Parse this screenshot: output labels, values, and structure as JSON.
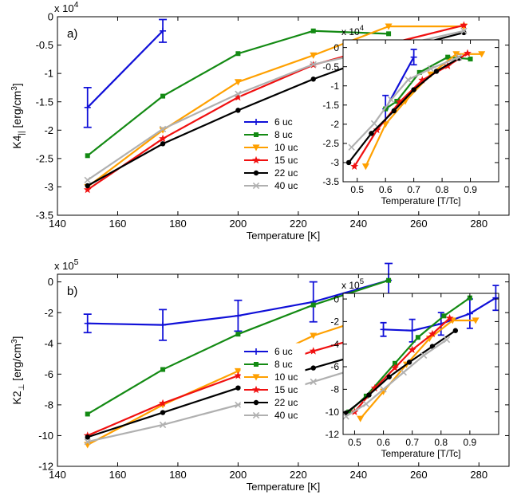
{
  "colors": {
    "6 uc": "#1010d8",
    "8 uc": "#138a13",
    "10 uc": "#ffa000",
    "15 uc": "#f01010",
    "22 uc": "#000000",
    "40 uc": "#b0b0b0"
  },
  "chart_data": [
    {
      "id": "a-main",
      "type": "line",
      "panel_label": "a)",
      "xlabel": "Temperature [K]",
      "ylabel_main": "K4",
      "ylabel_sub": "||",
      "ylabel_unit": " [erg/cm",
      "ylabel_sup": "3",
      "ylabel_end": "]",
      "exp_base": "x 10",
      "exp_power": "4",
      "xlim": [
        140,
        290
      ],
      "ylim": [
        -3.5,
        0
      ],
      "xticks": [
        140,
        160,
        180,
        200,
        220,
        240,
        260,
        280
      ],
      "yticks": [
        -3.5,
        -3,
        -2.5,
        -2,
        -1.5,
        -1,
        -0.5,
        0
      ],
      "ytick_labels": [
        "-3.5",
        "-3",
        "-2.5",
        "-2",
        "-1.5",
        "-1",
        "-0.5",
        "0"
      ],
      "legend": "right",
      "series": [
        {
          "name": "6 uc",
          "marker": "plus",
          "x": [
            150,
            175
          ],
          "y": [
            -1.6,
            -0.25
          ],
          "err": [
            0.35,
            0.2
          ]
        },
        {
          "name": "8 uc",
          "marker": "square",
          "x": [
            150,
            175,
            200,
            225,
            250
          ],
          "y": [
            -2.45,
            -1.4,
            -0.65,
            -0.25,
            -0.3
          ]
        },
        {
          "name": "10 uc",
          "marker": "tri",
          "x": [
            150,
            175,
            200,
            225,
            250,
            275
          ],
          "y": [
            -3.0,
            -2.0,
            -1.15,
            -0.68,
            -0.17,
            -0.17
          ]
        },
        {
          "name": "15 uc",
          "marker": "star",
          "x": [
            150,
            175,
            200,
            225,
            250,
            275
          ],
          "y": [
            -3.05,
            -2.15,
            -1.42,
            -0.85,
            -0.48,
            -0.15
          ]
        },
        {
          "name": "22 uc",
          "marker": "circle",
          "x": [
            150,
            175,
            200,
            225,
            250,
            275
          ],
          "y": [
            -2.98,
            -2.24,
            -1.65,
            -1.1,
            -0.62,
            -0.28
          ]
        },
        {
          "name": "40 uc",
          "marker": "x",
          "x": [
            150,
            175,
            200,
            225,
            250,
            275
          ],
          "y": [
            -2.88,
            -1.98,
            -1.36,
            -0.84,
            -0.55,
            -0.25
          ]
        }
      ]
    },
    {
      "id": "a-inset",
      "type": "line",
      "xlabel": "Temperature [T/Tc]",
      "exp_base": "x 10",
      "exp_power": "4",
      "xlim": [
        0.45,
        1.0
      ],
      "ylim": [
        -3.5,
        0.2
      ],
      "xticks": [
        0.5,
        0.6,
        0.7,
        0.8,
        0.9
      ],
      "xtick_labels": [
        "0.5",
        "0.6",
        "0.7",
        "0.8",
        "0.9"
      ],
      "yticks": [
        -3.5,
        -3,
        -2.5,
        -2,
        -1.5,
        -1,
        -0.5,
        0
      ],
      "ytick_labels": [
        "-3.5",
        "-3",
        "-2.5",
        "-2",
        "-1.5",
        "-1",
        "-0.5",
        "0"
      ],
      "series": [
        {
          "name": "6 uc",
          "marker": "plus",
          "x": [
            0.6,
            0.7
          ],
          "y": [
            -1.6,
            -0.25
          ],
          "err": [
            0.35,
            0.2
          ]
        },
        {
          "name": "8 uc",
          "marker": "square",
          "x": [
            0.6,
            0.64,
            0.72,
            0.82,
            0.9
          ],
          "y": [
            -1.6,
            -1.4,
            -0.65,
            -0.25,
            -0.3
          ]
        },
        {
          "name": "10 uc",
          "marker": "tri",
          "x": [
            0.53,
            0.6,
            0.67,
            0.76,
            0.85,
            0.94
          ],
          "y": [
            -3.1,
            -2.0,
            -1.4,
            -0.7,
            -0.17,
            -0.17
          ]
        },
        {
          "name": "15 uc",
          "marker": "star",
          "x": [
            0.49,
            0.57,
            0.65,
            0.73,
            0.82,
            0.89
          ],
          "y": [
            -3.1,
            -2.15,
            -1.42,
            -0.85,
            -0.48,
            -0.15
          ]
        },
        {
          "name": "22 uc",
          "marker": "circle",
          "x": [
            0.47,
            0.55,
            0.63,
            0.7,
            0.78,
            0.86
          ],
          "y": [
            -3.0,
            -2.24,
            -1.65,
            -1.1,
            -0.62,
            -0.28
          ]
        },
        {
          "name": "40 uc",
          "marker": "x",
          "x": [
            0.48,
            0.56,
            0.62,
            0.68,
            0.76,
            0.86
          ],
          "y": [
            -2.6,
            -1.98,
            -1.36,
            -0.84,
            -0.55,
            -0.25
          ]
        }
      ]
    },
    {
      "id": "b-main",
      "type": "line",
      "panel_label": "b)",
      "xlabel": "Temperature [K]",
      "ylabel_main": "K2",
      "ylabel_sub": "⊥",
      "ylabel_unit": " [erg/cm",
      "ylabel_sup": "3",
      "ylabel_end": "]",
      "exp_base": "x 10",
      "exp_power": "5",
      "xlim": [
        140,
        290
      ],
      "ylim": [
        -12,
        0.5
      ],
      "xticks": [
        140,
        160,
        180,
        200,
        220,
        240,
        260,
        280
      ],
      "yticks": [
        -12,
        -10,
        -8,
        -6,
        -4,
        -2,
        0
      ],
      "ytick_labels": [
        "-12",
        "-10",
        "-8",
        "-6",
        "-4",
        "-2",
        "0"
      ],
      "legend": "right",
      "series": [
        {
          "name": "6 uc",
          "marker": "plus",
          "x": [
            150,
            175,
            200,
            225,
            250
          ],
          "y": [
            -2.7,
            -2.8,
            -2.2,
            -1.3,
            0.1
          ],
          "err": [
            0.6,
            1.0,
            1.0,
            1.3,
            1.1
          ]
        },
        {
          "name": "8 uc",
          "marker": "square",
          "x": [
            150,
            175,
            200,
            225,
            250
          ],
          "y": [
            -8.6,
            -5.7,
            -3.4,
            -1.5,
            0.1
          ]
        },
        {
          "name": "10 uc",
          "marker": "tri",
          "x": [
            150,
            175,
            200,
            225,
            250,
            275
          ],
          "y": [
            -10.6,
            -8.0,
            -5.8,
            -3.5,
            -1.9,
            -1.9
          ]
        },
        {
          "name": "15 uc",
          "marker": "star",
          "x": [
            150,
            175,
            200,
            225,
            250,
            275
          ],
          "y": [
            -10.0,
            -7.9,
            -6.1,
            -4.5,
            -3.1,
            -1.7
          ]
        },
        {
          "name": "22 uc",
          "marker": "circle",
          "x": [
            150,
            175,
            200,
            225,
            250,
            275
          ],
          "y": [
            -10.1,
            -8.5,
            -6.9,
            -5.6,
            -4.2,
            -2.8
          ]
        },
        {
          "name": "40 uc",
          "marker": "x",
          "x": [
            150,
            175,
            200,
            225,
            250,
            275
          ],
          "y": [
            -10.4,
            -9.3,
            -8.0,
            -6.5,
            -5.0,
            -3.6
          ]
        }
      ]
    },
    {
      "id": "b-inset",
      "type": "line",
      "xlabel": "Temperature [T/Tc]",
      "exp_base": "x 10",
      "exp_power": "5",
      "xlim": [
        0.46,
        1.0
      ],
      "ylim": [
        -12,
        0.5
      ],
      "xticks": [
        0.5,
        0.6,
        0.7,
        0.8,
        0.9
      ],
      "xtick_labels": [
        "0.5",
        "0.6",
        "0.7",
        "0.8",
        "0.9"
      ],
      "yticks": [
        -12,
        -10,
        -8,
        -6,
        -4,
        -2,
        0
      ],
      "ytick_labels": [
        "-12",
        "-10",
        "-8",
        "-6",
        "-4",
        "-2",
        "0"
      ],
      "series": [
        {
          "name": "6 uc",
          "marker": "plus",
          "x": [
            0.6,
            0.7,
            0.8,
            0.9,
            0.99
          ],
          "y": [
            -2.7,
            -2.8,
            -2.2,
            -1.3,
            0.1
          ],
          "err": [
            0.6,
            1.0,
            1.0,
            1.3,
            1.1
          ]
        },
        {
          "name": "8 uc",
          "marker": "square",
          "x": [
            0.48,
            0.54,
            0.64,
            0.72,
            0.81,
            0.9
          ],
          "y": [
            -10.0,
            -8.6,
            -5.7,
            -3.4,
            -1.5,
            0.1
          ]
        },
        {
          "name": "10 uc",
          "marker": "tri",
          "x": [
            0.52,
            0.6,
            0.68,
            0.76,
            0.84,
            0.92
          ],
          "y": [
            -10.6,
            -8.2,
            -5.8,
            -3.5,
            -1.9,
            -1.9
          ]
        },
        {
          "name": "15 uc",
          "marker": "star",
          "x": [
            0.5,
            0.57,
            0.64,
            0.7,
            0.77,
            0.83
          ],
          "y": [
            -10.0,
            -7.9,
            -6.1,
            -4.5,
            -3.1,
            -1.7
          ]
        },
        {
          "name": "22 uc",
          "marker": "circle",
          "x": [
            0.47,
            0.55,
            0.62,
            0.69,
            0.77,
            0.85
          ],
          "y": [
            -10.1,
            -8.5,
            -6.9,
            -5.6,
            -4.2,
            -2.8
          ]
        },
        {
          "name": "40 uc",
          "marker": "x",
          "x": [
            0.47,
            0.54,
            0.6,
            0.67,
            0.74,
            0.82
          ],
          "y": [
            -10.4,
            -9.3,
            -8.0,
            -6.5,
            -5.0,
            -3.6
          ]
        }
      ]
    }
  ]
}
